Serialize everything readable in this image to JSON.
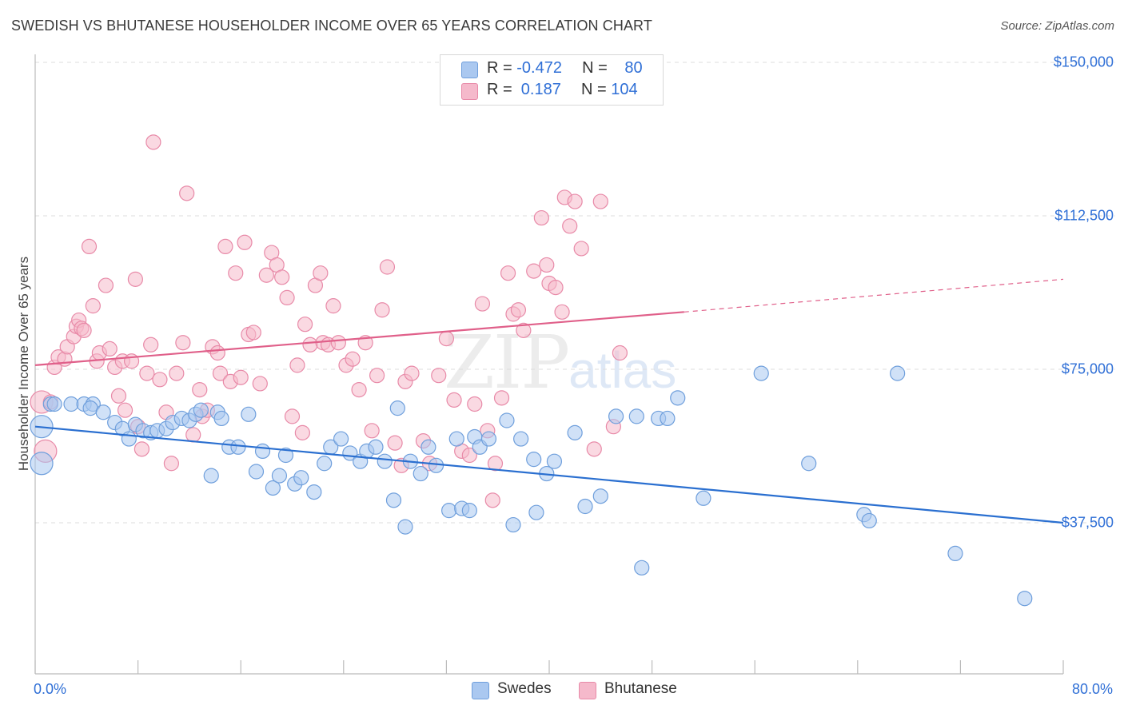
{
  "title": "SWEDISH VS BHUTANESE HOUSEHOLDER INCOME OVER 65 YEARS CORRELATION CHART",
  "source": "Source: ZipAtlas.com",
  "watermark": {
    "zip": "ZIP",
    "atlas": "atlas"
  },
  "legend": {
    "rows": [
      {
        "r_label": "R = ",
        "r_value": "-0.472",
        "n_label": "N = ",
        "n_value": "80",
        "color": "#aac8f0"
      },
      {
        "r_label": "R = ",
        "r_value": " 0.187",
        "n_label": "N = ",
        "n_value": "104",
        "color": "#f5b9cb"
      }
    ]
  },
  "bottom_legend": [
    "Swedes",
    "Bhutanese"
  ],
  "colors": {
    "blue_fill": "#aac8f0",
    "blue_stroke": "#6f9fdc",
    "blue_line": "#2a6fd0",
    "pink_fill": "#f5b9cb",
    "pink_stroke": "#e88aa8",
    "pink_line": "#e0608a",
    "grid": "#dddddd",
    "tick_text": "#2f6fd6"
  },
  "chart_data": {
    "type": "scatter",
    "title": "SWEDISH VS BHUTANESE HOUSEHOLDER INCOME OVER 65 YEARS CORRELATION CHART",
    "xlabel": "",
    "ylabel": "Householder Income Over 65 years",
    "xlim": [
      0,
      80
    ],
    "ylim": [
      15000,
      155000
    ],
    "x_tick_labels": [
      "0.0%",
      "80.0%"
    ],
    "y_ticks": [
      37500,
      75000,
      112500,
      150000
    ],
    "y_tick_labels": [
      "$37,500",
      "$75,000",
      "$112,500",
      "$150,000"
    ],
    "grid": true,
    "legend_position": "top-center",
    "series": [
      {
        "name": "Swedes",
        "r": -0.472,
        "n": 80,
        "trend": {
          "x": [
            0,
            80
          ],
          "y": [
            61000,
            37500
          ]
        },
        "points": [
          [
            0.5,
            61000
          ],
          [
            0.5,
            52000
          ],
          [
            1.2,
            66500
          ],
          [
            1.5,
            66500
          ],
          [
            2.8,
            66500
          ],
          [
            3.8,
            66500
          ],
          [
            4.5,
            66500
          ],
          [
            4.3,
            65500
          ],
          [
            5.3,
            64500
          ],
          [
            6.2,
            62000
          ],
          [
            6.8,
            60500
          ],
          [
            7.3,
            58000
          ],
          [
            7.8,
            61500
          ],
          [
            8.4,
            60000
          ],
          [
            9.0,
            59500
          ],
          [
            9.5,
            60000
          ],
          [
            10.2,
            60500
          ],
          [
            10.7,
            62000
          ],
          [
            11.4,
            63000
          ],
          [
            12.0,
            62500
          ],
          [
            12.5,
            64000
          ],
          [
            12.9,
            65000
          ],
          [
            13.7,
            49000
          ],
          [
            14.2,
            64500
          ],
          [
            14.5,
            63000
          ],
          [
            15.1,
            56000
          ],
          [
            15.8,
            56000
          ],
          [
            16.6,
            64000
          ],
          [
            17.2,
            50000
          ],
          [
            17.7,
            55000
          ],
          [
            18.5,
            46000
          ],
          [
            19.0,
            49000
          ],
          [
            19.5,
            54000
          ],
          [
            20.2,
            47000
          ],
          [
            20.7,
            48500
          ],
          [
            21.7,
            45000
          ],
          [
            22.5,
            52000
          ],
          [
            23.0,
            56000
          ],
          [
            23.8,
            58000
          ],
          [
            24.5,
            54500
          ],
          [
            25.3,
            52500
          ],
          [
            25.8,
            55000
          ],
          [
            26.5,
            56000
          ],
          [
            27.2,
            52500
          ],
          [
            27.9,
            43000
          ],
          [
            28.2,
            65500
          ],
          [
            28.8,
            36500
          ],
          [
            29.2,
            52500
          ],
          [
            30.0,
            49500
          ],
          [
            30.6,
            56000
          ],
          [
            31.2,
            51500
          ],
          [
            32.2,
            40500
          ],
          [
            32.8,
            58000
          ],
          [
            33.2,
            41000
          ],
          [
            33.8,
            40500
          ],
          [
            34.2,
            58500
          ],
          [
            34.6,
            56000
          ],
          [
            35.3,
            58000
          ],
          [
            36.7,
            62500
          ],
          [
            37.2,
            37000
          ],
          [
            37.8,
            58000
          ],
          [
            38.8,
            53000
          ],
          [
            39.0,
            40000
          ],
          [
            39.8,
            49500
          ],
          [
            40.4,
            52500
          ],
          [
            42.0,
            59500
          ],
          [
            42.8,
            41500
          ],
          [
            44.0,
            44000
          ],
          [
            45.2,
            63500
          ],
          [
            46.8,
            63500
          ],
          [
            47.2,
            26500
          ],
          [
            48.5,
            63000
          ],
          [
            49.2,
            63000
          ],
          [
            50.0,
            68000
          ],
          [
            52.0,
            43500
          ],
          [
            56.5,
            74000
          ],
          [
            60.2,
            52000
          ],
          [
            64.5,
            39500
          ],
          [
            64.9,
            38000
          ],
          [
            67.1,
            74000
          ],
          [
            71.6,
            30000
          ],
          [
            77.0,
            19000
          ]
        ]
      },
      {
        "name": "Bhutanese",
        "r": 0.187,
        "n": 104,
        "trend": {
          "x": [
            0,
            50.5
          ],
          "y": [
            76000,
            89000
          ]
        },
        "trend_dashed": {
          "x": [
            50.5,
            80
          ],
          "y": [
            89000,
            97000
          ]
        },
        "points": [
          [
            0.5,
            67000
          ],
          [
            0.8,
            55000
          ],
          [
            1.2,
            67000
          ],
          [
            1.5,
            75500
          ],
          [
            1.8,
            78000
          ],
          [
            2.3,
            77500
          ],
          [
            2.5,
            80500
          ],
          [
            3.0,
            83000
          ],
          [
            3.2,
            85500
          ],
          [
            3.4,
            87000
          ],
          [
            3.6,
            85000
          ],
          [
            3.8,
            84500
          ],
          [
            4.2,
            105000
          ],
          [
            4.5,
            90500
          ],
          [
            4.8,
            77000
          ],
          [
            5.0,
            79000
          ],
          [
            5.5,
            95500
          ],
          [
            5.8,
            80000
          ],
          [
            6.2,
            75500
          ],
          [
            6.5,
            68500
          ],
          [
            6.8,
            77000
          ],
          [
            7.0,
            65000
          ],
          [
            7.5,
            77000
          ],
          [
            7.8,
            97000
          ],
          [
            8.0,
            61000
          ],
          [
            8.3,
            55500
          ],
          [
            8.7,
            74000
          ],
          [
            9.0,
            81000
          ],
          [
            9.2,
            130500
          ],
          [
            9.7,
            72500
          ],
          [
            10.2,
            64500
          ],
          [
            10.6,
            52000
          ],
          [
            11.0,
            74000
          ],
          [
            11.5,
            81500
          ],
          [
            11.8,
            118000
          ],
          [
            12.3,
            59000
          ],
          [
            12.8,
            70000
          ],
          [
            13.0,
            63500
          ],
          [
            13.4,
            65000
          ],
          [
            13.8,
            80500
          ],
          [
            14.2,
            79000
          ],
          [
            14.4,
            74000
          ],
          [
            14.8,
            105000
          ],
          [
            15.2,
            72000
          ],
          [
            15.6,
            98500
          ],
          [
            16.0,
            73000
          ],
          [
            16.3,
            106000
          ],
          [
            16.6,
            83500
          ],
          [
            17.0,
            84000
          ],
          [
            17.5,
            71500
          ],
          [
            18.0,
            98000
          ],
          [
            18.4,
            103500
          ],
          [
            18.8,
            100500
          ],
          [
            19.2,
            97500
          ],
          [
            19.6,
            92500
          ],
          [
            20.0,
            63500
          ],
          [
            20.4,
            76000
          ],
          [
            20.8,
            59500
          ],
          [
            21.0,
            86000
          ],
          [
            21.4,
            81000
          ],
          [
            21.8,
            95500
          ],
          [
            22.2,
            98500
          ],
          [
            22.4,
            81500
          ],
          [
            22.8,
            81000
          ],
          [
            23.2,
            90500
          ],
          [
            23.6,
            81500
          ],
          [
            24.2,
            76000
          ],
          [
            24.7,
            77500
          ],
          [
            25.2,
            70000
          ],
          [
            25.7,
            81500
          ],
          [
            26.2,
            60000
          ],
          [
            26.6,
            73500
          ],
          [
            27.0,
            89500
          ],
          [
            27.4,
            100000
          ],
          [
            28.0,
            57000
          ],
          [
            28.5,
            51500
          ],
          [
            28.8,
            72000
          ],
          [
            29.3,
            74000
          ],
          [
            30.2,
            57500
          ],
          [
            30.7,
            52000
          ],
          [
            31.4,
            73500
          ],
          [
            32.0,
            82500
          ],
          [
            32.6,
            67500
          ],
          [
            33.2,
            55000
          ],
          [
            33.8,
            54000
          ],
          [
            34.2,
            66500
          ],
          [
            34.8,
            91000
          ],
          [
            35.2,
            60000
          ],
          [
            35.6,
            43000
          ],
          [
            35.8,
            52000
          ],
          [
            36.3,
            68000
          ],
          [
            36.8,
            98500
          ],
          [
            37.2,
            88500
          ],
          [
            37.6,
            89500
          ],
          [
            38.0,
            84500
          ],
          [
            38.8,
            99000
          ],
          [
            39.4,
            112000
          ],
          [
            39.8,
            100500
          ],
          [
            40.0,
            96000
          ],
          [
            40.5,
            95000
          ],
          [
            41.0,
            89000
          ],
          [
            41.2,
            117000
          ],
          [
            41.6,
            110000
          ],
          [
            42.0,
            116000
          ],
          [
            42.5,
            104500
          ],
          [
            43.5,
            55500
          ],
          [
            44.0,
            116000
          ],
          [
            45.0,
            61000
          ],
          [
            45.5,
            79000
          ]
        ]
      }
    ]
  }
}
